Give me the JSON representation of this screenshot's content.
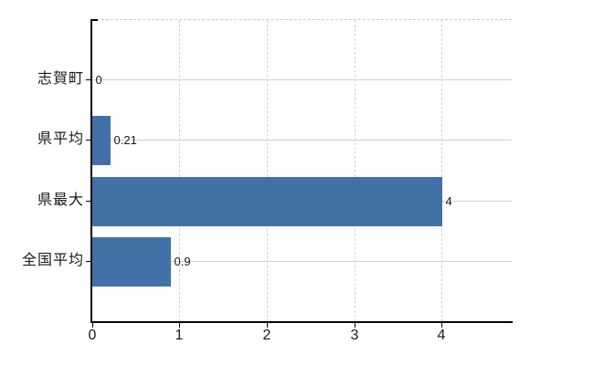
{
  "chart": {
    "background_color": "#ffffff",
    "bar_color": "#4271a8",
    "axis_color": "#000000",
    "h_gridline_color": "#ccd4cc",
    "v_gridline_color": "#d3d3d8",
    "frame_dash_color": "#c9c9c9",
    "category_label_color": "#1a1a1a",
    "tick_label_color": "#1a1a1a",
    "value_label_color": "#1a1a1a"
  },
  "chart_data": {
    "type": "bar",
    "orientation": "horizontal",
    "title": "",
    "xlabel": "",
    "ylabel": "",
    "categories": [
      "志賀町",
      "県平均",
      "県最大",
      "全国平均"
    ],
    "values": [
      0,
      0.21,
      4,
      0.9
    ],
    "value_labels": [
      "0",
      "0.21",
      "4",
      "0.9"
    ],
    "x_ticks": [
      0,
      1,
      2,
      3,
      4
    ],
    "x_tick_labels": [
      "0",
      "1",
      "2",
      "3",
      "4"
    ],
    "xlim": [
      0,
      4.8
    ],
    "grid": "both",
    "h_grid_style": "solid",
    "v_grid_style": "dashed",
    "top_border_style": "dashed",
    "legend": "none"
  }
}
